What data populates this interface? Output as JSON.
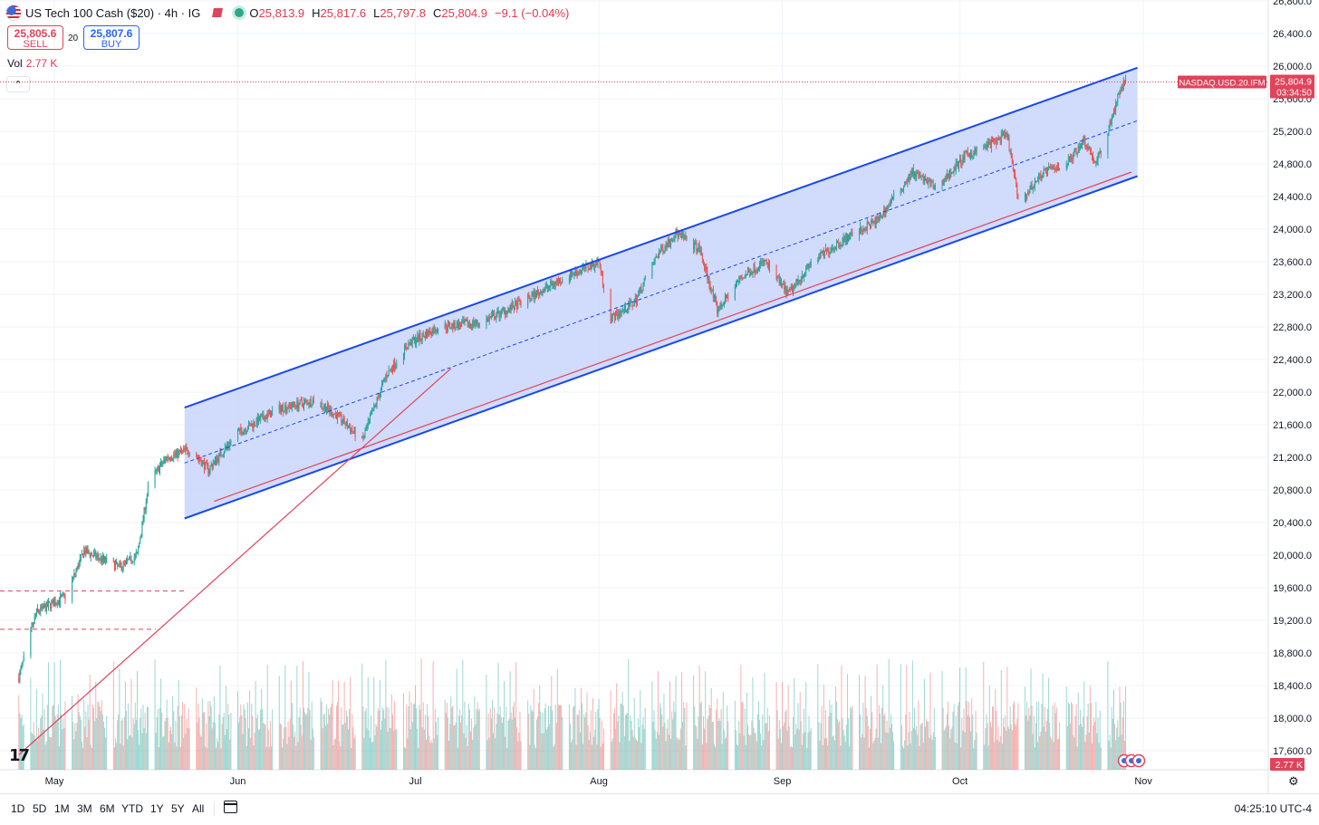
{
  "header": {
    "symbol": "US Tech 100 Cash ($20) · 4h · IG",
    "ohlc": [
      {
        "k": "O",
        "v": "25,813.9"
      },
      {
        "k": "H",
        "v": "25,817.6"
      },
      {
        "k": "L",
        "v": "25,797.8"
      },
      {
        "k": "C",
        "v": "25,804.9"
      }
    ],
    "change": "−9.1 (−0.04%)",
    "sell_price": "25,805.6",
    "sell_label": "SELL",
    "spread": "20",
    "buy_price": "25,807.6",
    "buy_label": "BUY",
    "vol_label": "Vol",
    "vol_value": "2.77 K",
    "collapse_glyph": "⌃"
  },
  "price_tag": {
    "symbol_label": "NASDAQ.USD.20.IFM",
    "price": "25,804.9",
    "countdown": "03:34:50"
  },
  "volume_tag": "2.77 K",
  "bottom_bar": {
    "ranges": [
      "1D",
      "5D",
      "1M",
      "3M",
      "6M",
      "YTD",
      "1Y",
      "5Y",
      "All"
    ],
    "clock": "04:25:10 UTC-4"
  },
  "colors": {
    "up": "#26a69a",
    "down": "#ef5350",
    "channel": "#1848f0",
    "channel_fill": "#c9d5fb",
    "red_line": "#e0435a"
  },
  "chart_data": {
    "type": "candlestick",
    "interval": "4h",
    "x_ticks": [
      "May",
      "Jun",
      "Jul",
      "Aug",
      "Sep",
      "Oct",
      "Nov"
    ],
    "x_tick_dates": [
      "2025-05-01",
      "2025-06-01",
      "2025-07-01",
      "2025-08-01",
      "2025-09-01",
      "2025-10-01",
      "2025-11-01"
    ],
    "y_ticks": [
      "26,800.0",
      "26,400.0",
      "26,000.0",
      "25,600.0",
      "25,200.0",
      "24,800.0",
      "24,400.0",
      "24,000.0",
      "23,600.0",
      "23,200.0",
      "22,800.0",
      "22,400.0",
      "22,000.0",
      "21,600.0",
      "21,200.0",
      "20,800.0",
      "20,400.0",
      "20,000.0",
      "19,600.0",
      "19,200.0",
      "18,800.0",
      "18,400.0",
      "18,000.0",
      "17,600.0"
    ],
    "ylim": [
      17500,
      26900
    ],
    "last_price": 25804.9,
    "price_path": [
      {
        "date": "2025-04-25",
        "price": 18500
      },
      {
        "date": "2025-04-28",
        "price": 19300
      },
      {
        "date": "2025-05-03",
        "price": 19500
      },
      {
        "date": "2025-05-06",
        "price": 20050
      },
      {
        "date": "2025-05-12",
        "price": 19850
      },
      {
        "date": "2025-05-15",
        "price": 20000
      },
      {
        "date": "2025-05-17",
        "price": 20900
      },
      {
        "date": "2025-05-20",
        "price": 21200
      },
      {
        "date": "2025-05-24",
        "price": 21300
      },
      {
        "date": "2025-05-27",
        "price": 21050
      },
      {
        "date": "2025-06-01",
        "price": 21500
      },
      {
        "date": "2025-06-08",
        "price": 21800
      },
      {
        "date": "2025-06-14",
        "price": 21900
      },
      {
        "date": "2025-06-18",
        "price": 21700
      },
      {
        "date": "2025-06-22",
        "price": 21400
      },
      {
        "date": "2025-06-26",
        "price": 22200
      },
      {
        "date": "2025-06-30",
        "price": 22600
      },
      {
        "date": "2025-07-05",
        "price": 22800
      },
      {
        "date": "2025-07-12",
        "price": 22850
      },
      {
        "date": "2025-07-19",
        "price": 23100
      },
      {
        "date": "2025-07-26",
        "price": 23400
      },
      {
        "date": "2025-08-01",
        "price": 23600
      },
      {
        "date": "2025-08-03",
        "price": 22900
      },
      {
        "date": "2025-08-07",
        "price": 23100
      },
      {
        "date": "2025-08-11",
        "price": 23700
      },
      {
        "date": "2025-08-14",
        "price": 23950
      },
      {
        "date": "2025-08-18",
        "price": 23750
      },
      {
        "date": "2025-08-21",
        "price": 23000
      },
      {
        "date": "2025-08-25",
        "price": 23400
      },
      {
        "date": "2025-08-29",
        "price": 23600
      },
      {
        "date": "2025-09-02",
        "price": 23200
      },
      {
        "date": "2025-09-06",
        "price": 23600
      },
      {
        "date": "2025-09-12",
        "price": 23900
      },
      {
        "date": "2025-09-17",
        "price": 24100
      },
      {
        "date": "2025-09-23",
        "price": 24700
      },
      {
        "date": "2025-09-27",
        "price": 24500
      },
      {
        "date": "2025-10-02",
        "price": 24900
      },
      {
        "date": "2025-10-09",
        "price": 25150
      },
      {
        "date": "2025-10-11",
        "price": 24300
      },
      {
        "date": "2025-10-15",
        "price": 24700
      },
      {
        "date": "2025-10-19",
        "price": 24800
      },
      {
        "date": "2025-10-22",
        "price": 25100
      },
      {
        "date": "2025-10-24",
        "price": 24800
      },
      {
        "date": "2025-10-26",
        "price": 25200
      },
      {
        "date": "2025-10-28",
        "price": 25700
      },
      {
        "date": "2025-10-29",
        "price": 25804.9
      }
    ],
    "channel": {
      "upper": [
        {
          "date": "2025-05-23",
          "price": 21810
        },
        {
          "date": "2025-10-31",
          "price": 25980
        }
      ],
      "lower": [
        {
          "date": "2025-05-23",
          "price": 20450
        },
        {
          "date": "2025-10-31",
          "price": 24650
        }
      ],
      "midline": [
        {
          "date": "2025-05-23",
          "price": 21130
        },
        {
          "date": "2025-10-31",
          "price": 25330
        }
      ]
    },
    "trend_lines": [
      {
        "from": {
          "date": "2025-05-28",
          "price": 20660
        },
        "to": {
          "date": "2025-10-30",
          "price": 24700
        }
      },
      {
        "from": {
          "date": "2025-04-25",
          "price": 17550
        },
        "to": {
          "date": "2025-07-07",
          "price": 22290
        }
      }
    ],
    "horizontal_levels": [
      19560,
      19090
    ],
    "volume_peak": "2.77 K"
  }
}
